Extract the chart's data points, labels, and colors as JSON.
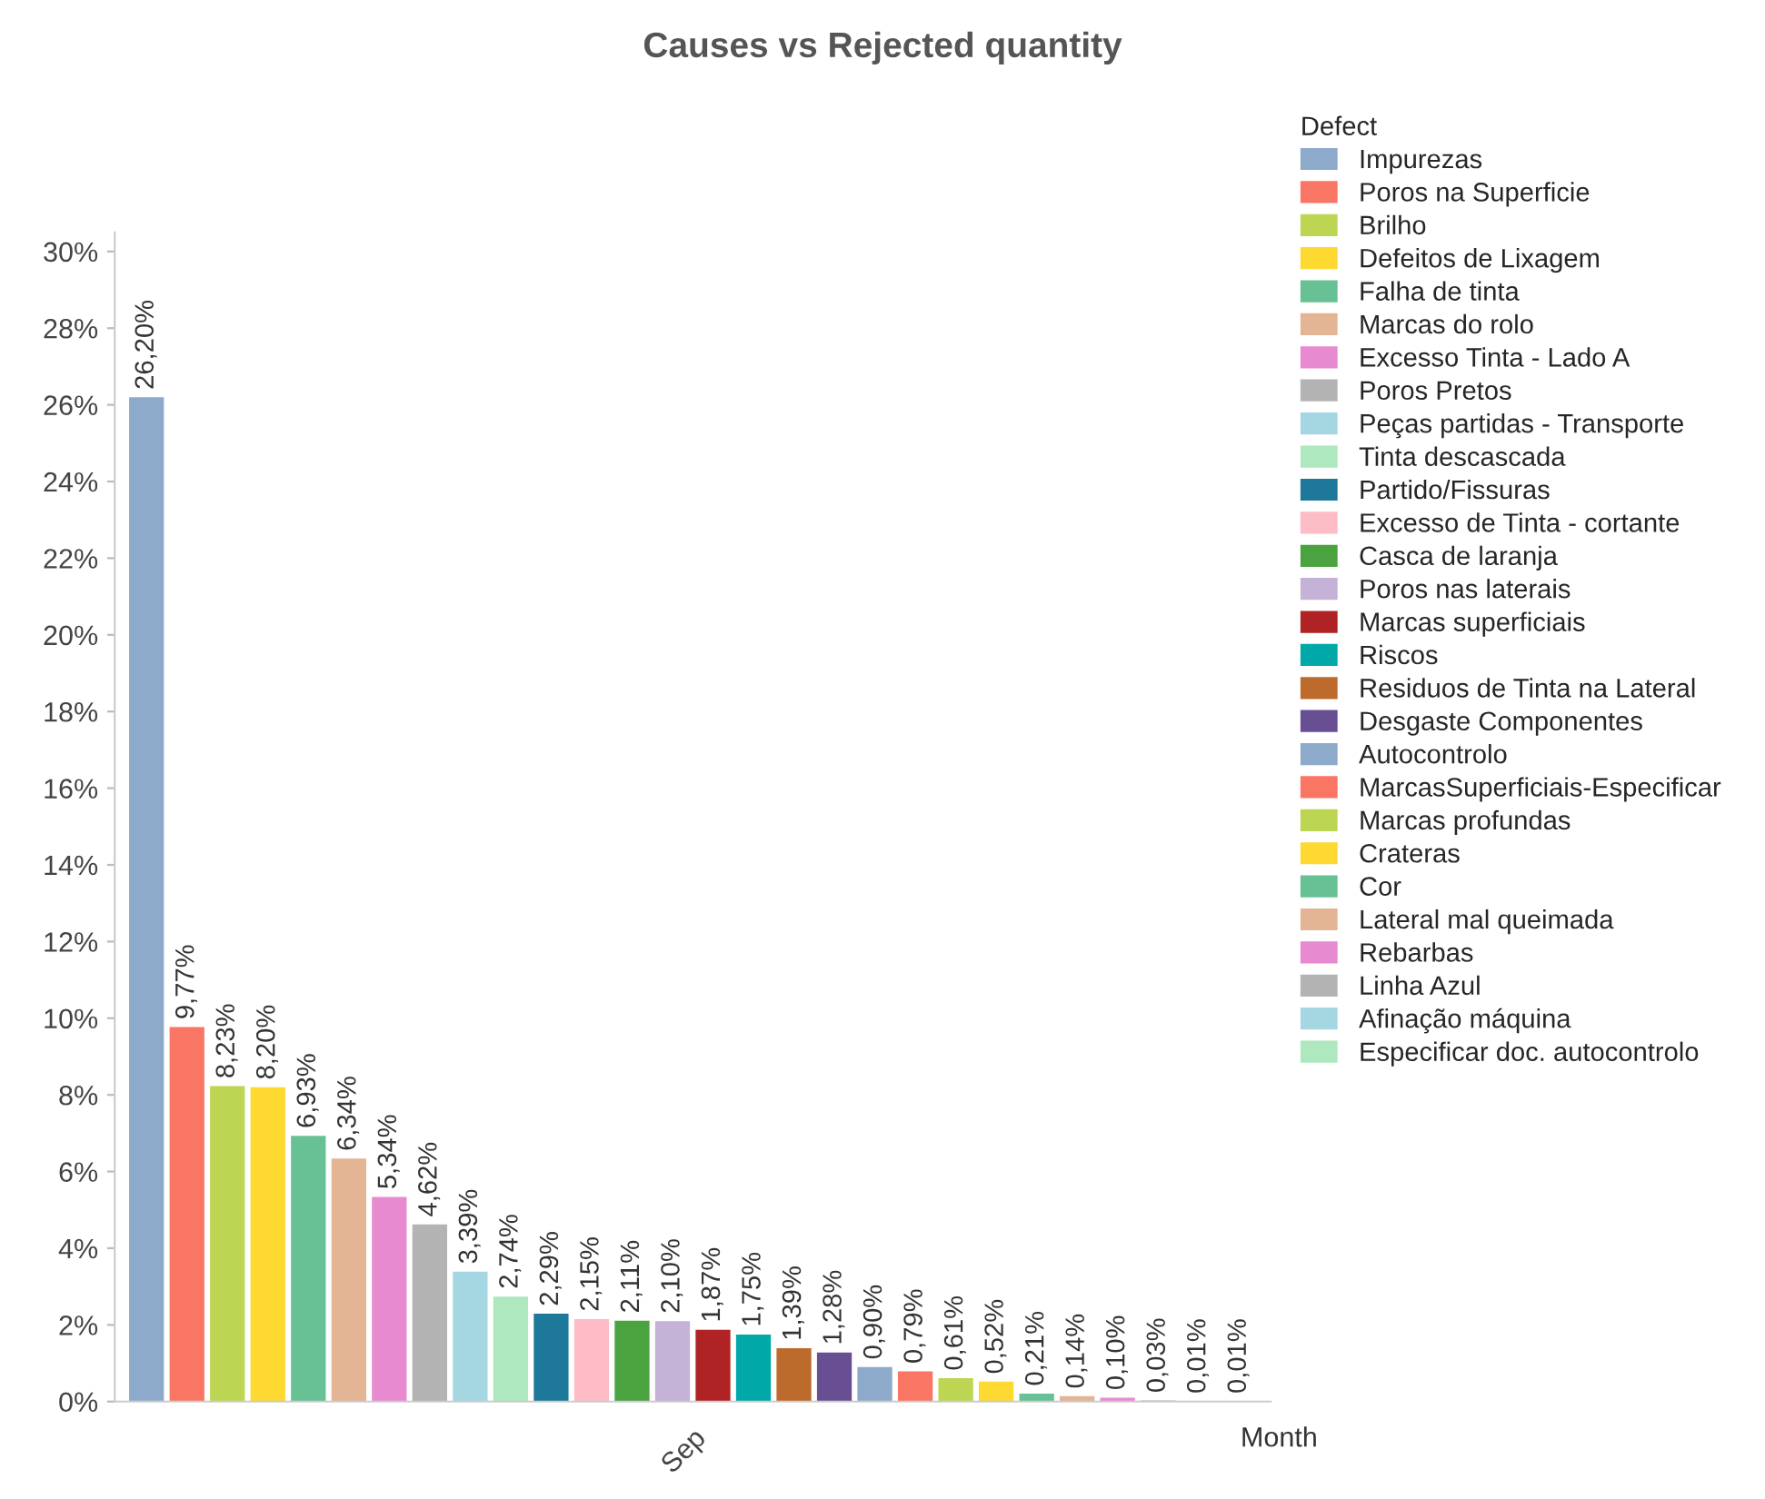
{
  "chart_data": {
    "type": "bar",
    "title": "Causes vs Rejected quantity",
    "xlabel": "Month",
    "legend_title": "Defect",
    "categories": [
      "Sep"
    ],
    "series": [
      {
        "name": "Impurezas",
        "color": "#8eaacb",
        "values": [
          26.2
        ],
        "value_labels": [
          "26,20%"
        ]
      },
      {
        "name": "Poros na Superficie",
        "color": "#fa7664",
        "values": [
          9.77
        ],
        "value_labels": [
          "9,77%"
        ]
      },
      {
        "name": "Brilho",
        "color": "#bcd653",
        "values": [
          8.23
        ],
        "value_labels": [
          "8,23%"
        ]
      },
      {
        "name": "Defeitos de Lixagem",
        "color": "#fdd931",
        "values": [
          8.2
        ],
        "value_labels": [
          "8,20%"
        ]
      },
      {
        "name": "Falha de tinta",
        "color": "#68c194",
        "values": [
          6.93
        ],
        "value_labels": [
          "6,93%"
        ]
      },
      {
        "name": "Marcas do rolo",
        "color": "#e3b595",
        "values": [
          6.34
        ],
        "value_labels": [
          "6,34%"
        ]
      },
      {
        "name": "Excesso Tinta - Lado A",
        "color": "#e78ad0",
        "values": [
          5.34
        ],
        "value_labels": [
          "5,34%"
        ]
      },
      {
        "name": "Poros Pretos",
        "color": "#b3b3b3",
        "values": [
          4.62
        ],
        "value_labels": [
          "4,62%"
        ]
      },
      {
        "name": "Peças partidas - Transporte",
        "color": "#a5d7e3",
        "values": [
          3.39
        ],
        "value_labels": [
          "3,39%"
        ]
      },
      {
        "name": "Tinta descascada",
        "color": "#ade8be",
        "values": [
          2.74
        ],
        "value_labels": [
          "2,74%"
        ]
      },
      {
        "name": "Partido/Fissuras",
        "color": "#1d789a",
        "values": [
          2.29
        ],
        "value_labels": [
          "2,29%"
        ]
      },
      {
        "name": "Excesso de Tinta - cortante",
        "color": "#fdbcc6",
        "values": [
          2.15
        ],
        "value_labels": [
          "2,15%"
        ]
      },
      {
        "name": "Casca de laranja",
        "color": "#4aa33f",
        "values": [
          2.11
        ],
        "value_labels": [
          "2,11%"
        ]
      },
      {
        "name": "Poros nas laterais",
        "color": "#c4b2d7",
        "values": [
          2.1
        ],
        "value_labels": [
          "2,10%"
        ]
      },
      {
        "name": "Marcas superficiais",
        "color": "#b02324",
        "values": [
          1.87
        ],
        "value_labels": [
          "1,87%"
        ]
      },
      {
        "name": "Riscos",
        "color": "#00a9a8",
        "values": [
          1.75
        ],
        "value_labels": [
          "1,75%"
        ]
      },
      {
        "name": "Residuos de Tinta na Lateral",
        "color": "#bd6b2c",
        "values": [
          1.39
        ],
        "value_labels": [
          "1,39%"
        ]
      },
      {
        "name": "Desgaste Componentes",
        "color": "#684f94",
        "values": [
          1.28
        ],
        "value_labels": [
          "1,28%"
        ]
      },
      {
        "name": "Autocontrolo",
        "color": "#8eaacb",
        "values": [
          0.9
        ],
        "value_labels": [
          "0,90%"
        ]
      },
      {
        "name": "MarcasSuperficiais-Especificar",
        "color": "#fa7664",
        "values": [
          0.79
        ],
        "value_labels": [
          "0,79%"
        ]
      },
      {
        "name": "Marcas profundas",
        "color": "#bcd653",
        "values": [
          0.61
        ],
        "value_labels": [
          "0,61%"
        ]
      },
      {
        "name": "Crateras",
        "color": "#fdd931",
        "values": [
          0.52
        ],
        "value_labels": [
          "0,52%"
        ]
      },
      {
        "name": "Cor",
        "color": "#68c194",
        "values": [
          0.21
        ],
        "value_labels": [
          "0,21%"
        ]
      },
      {
        "name": "Lateral mal queimada",
        "color": "#e3b595",
        "values": [
          0.14
        ],
        "value_labels": [
          "0,14%"
        ]
      },
      {
        "name": "Rebarbas",
        "color": "#e78ad0",
        "values": [
          0.1
        ],
        "value_labels": [
          "0,10%"
        ]
      },
      {
        "name": "Linha Azul",
        "color": "#b3b3b3",
        "values": [
          0.03
        ],
        "value_labels": [
          "0,03%"
        ]
      },
      {
        "name": "Afinação máquina",
        "color": "#a5d7e3",
        "values": [
          0.01
        ],
        "value_labels": [
          "0,01%"
        ]
      },
      {
        "name": "Especificar doc. autocontrolo",
        "color": "#ade8be",
        "values": [
          0.01
        ],
        "value_labels": [
          "0,01%"
        ]
      }
    ],
    "ylim": [
      0,
      30.5
    ],
    "yticks": [
      {
        "value": 0,
        "label": "0%"
      },
      {
        "value": 2,
        "label": "2%"
      },
      {
        "value": 4,
        "label": "4%"
      },
      {
        "value": 6,
        "label": "6%"
      },
      {
        "value": 8,
        "label": "8%"
      },
      {
        "value": 10,
        "label": "10%"
      },
      {
        "value": 12,
        "label": "12%"
      },
      {
        "value": 14,
        "label": "14%"
      },
      {
        "value": 16,
        "label": "16%"
      },
      {
        "value": 18,
        "label": "18%"
      },
      {
        "value": 20,
        "label": "20%"
      },
      {
        "value": 22,
        "label": "22%"
      },
      {
        "value": 24,
        "label": "24%"
      },
      {
        "value": 26,
        "label": "26%"
      },
      {
        "value": 28,
        "label": "28%"
      },
      {
        "value": 30,
        "label": "30%"
      }
    ],
    "legend": "right"
  }
}
